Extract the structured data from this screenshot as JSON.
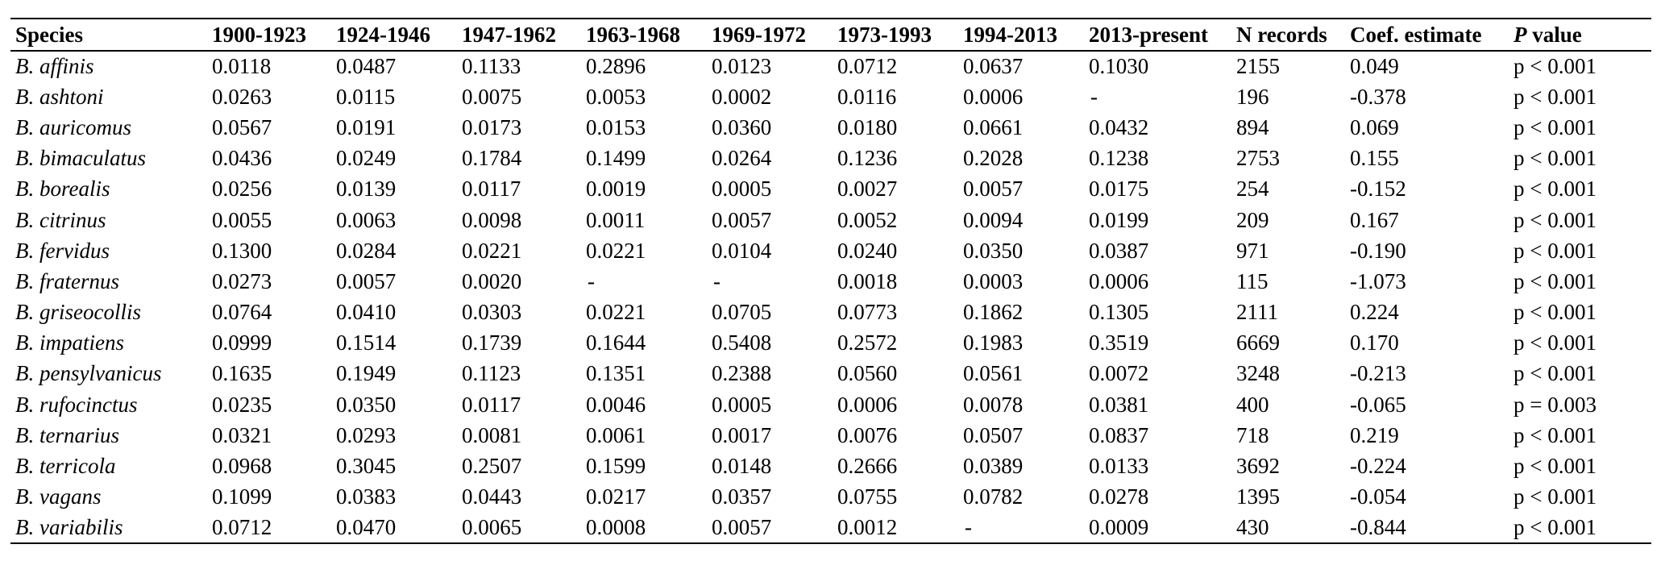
{
  "table": {
    "headers": {
      "species": "Species",
      "p1": "1900-1923",
      "p2": "1924-1946",
      "p3": "1947-1962",
      "p4": "1963-1968",
      "p5": "1969-1972",
      "p6": "1973-1993",
      "p7": "1994-2013",
      "p8": "2013-present",
      "n_records": "N records",
      "coef": "Coef. estimate",
      "p_value_italic": "P",
      "p_value_rest": " value"
    },
    "rows": [
      {
        "species": "B. affinis",
        "p1": "0.0118",
        "p2": "0.0487",
        "p3": "0.1133",
        "p4": "0.2896",
        "p5": "0.0123",
        "p6": "0.0712",
        "p7": "0.0637",
        "p8": "0.1030",
        "n": "2155",
        "coef": "0.049",
        "p": "p < 0.001"
      },
      {
        "species": "B. ashtoni",
        "p1": "0.0263",
        "p2": "0.0115",
        "p3": "0.0075",
        "p4": "0.0053",
        "p5": "0.0002",
        "p6": "0.0116",
        "p7": "0.0006",
        "p8": "-",
        "n": "196",
        "coef": "-0.378",
        "p": "p < 0.001"
      },
      {
        "species": "B. auricomus",
        "p1": "0.0567",
        "p2": "0.0191",
        "p3": "0.0173",
        "p4": "0.0153",
        "p5": "0.0360",
        "p6": "0.0180",
        "p7": "0.0661",
        "p8": "0.0432",
        "n": "894",
        "coef": "0.069",
        "p": "p < 0.001"
      },
      {
        "species": "B. bimaculatus",
        "p1": "0.0436",
        "p2": "0.0249",
        "p3": "0.1784",
        "p4": "0.1499",
        "p5": "0.0264",
        "p6": "0.1236",
        "p7": "0.2028",
        "p8": "0.1238",
        "n": "2753",
        "coef": "0.155",
        "p": "p < 0.001"
      },
      {
        "species": "B. borealis",
        "p1": "0.0256",
        "p2": "0.0139",
        "p3": "0.0117",
        "p4": "0.0019",
        "p5": "0.0005",
        "p6": "0.0027",
        "p7": "0.0057",
        "p8": "0.0175",
        "n": "254",
        "coef": "-0.152",
        "p": "p < 0.001"
      },
      {
        "species": "B. citrinus",
        "p1": "0.0055",
        "p2": "0.0063",
        "p3": "0.0098",
        "p4": "0.0011",
        "p5": "0.0057",
        "p6": "0.0052",
        "p7": "0.0094",
        "p8": "0.0199",
        "n": "209",
        "coef": "0.167",
        "p": "p < 0.001"
      },
      {
        "species": "B. fervidus",
        "p1": "0.1300",
        "p2": "0.0284",
        "p3": "0.0221",
        "p4": "0.0221",
        "p5": "0.0104",
        "p6": "0.0240",
        "p7": "0.0350",
        "p8": "0.0387",
        "n": "971",
        "coef": "-0.190",
        "p": "p < 0.001"
      },
      {
        "species": "B. fraternus",
        "p1": "0.0273",
        "p2": "0.0057",
        "p3": "0.0020",
        "p4": "-",
        "p5": "-",
        "p6": "0.0018",
        "p7": "0.0003",
        "p8": "0.0006",
        "n": "115",
        "coef": "-1.073",
        "p": "p < 0.001"
      },
      {
        "species": "B. griseocollis",
        "p1": "0.0764",
        "p2": "0.0410",
        "p3": "0.0303",
        "p4": "0.0221",
        "p5": "0.0705",
        "p6": "0.0773",
        "p7": "0.1862",
        "p8": "0.1305",
        "n": "2111",
        "coef": "0.224",
        "p": "p < 0.001"
      },
      {
        "species": "B. impatiens",
        "p1": "0.0999",
        "p2": "0.1514",
        "p3": "0.1739",
        "p4": "0.1644",
        "p5": "0.5408",
        "p6": "0.2572",
        "p7": "0.1983",
        "p8": "0.3519",
        "n": "6669",
        "coef": "0.170",
        "p": "p < 0.001"
      },
      {
        "species": "B. pensylvanicus",
        "p1": "0.1635",
        "p2": "0.1949",
        "p3": "0.1123",
        "p4": "0.1351",
        "p5": "0.2388",
        "p6": "0.0560",
        "p7": "0.0561",
        "p8": "0.0072",
        "n": "3248",
        "coef": "-0.213",
        "p": "p < 0.001"
      },
      {
        "species": "B. rufocinctus",
        "p1": "0.0235",
        "p2": "0.0350",
        "p3": "0.0117",
        "p4": "0.0046",
        "p5": "0.0005",
        "p6": "0.0006",
        "p7": "0.0078",
        "p8": "0.0381",
        "n": "400",
        "coef": "-0.065",
        "p": "p = 0.003"
      },
      {
        "species": "B. ternarius",
        "p1": "0.0321",
        "p2": "0.0293",
        "p3": "0.0081",
        "p4": "0.0061",
        "p5": "0.0017",
        "p6": "0.0076",
        "p7": "0.0507",
        "p8": "0.0837",
        "n": "718",
        "coef": "0.219",
        "p": "p < 0.001"
      },
      {
        "species": "B. terricola",
        "p1": "0.0968",
        "p2": "0.3045",
        "p3": "0.2507",
        "p4": "0.1599",
        "p5": "0.0148",
        "p6": "0.2666",
        "p7": "0.0389",
        "p8": "0.0133",
        "n": "3692",
        "coef": "-0.224",
        "p": "p < 0.001"
      },
      {
        "species": "B. vagans",
        "p1": "0.1099",
        "p2": "0.0383",
        "p3": "0.0443",
        "p4": "0.0217",
        "p5": "0.0357",
        "p6": "0.0755",
        "p7": "0.0782",
        "p8": "0.0278",
        "n": "1395",
        "coef": "-0.054",
        "p": "p < 0.001"
      },
      {
        "species": "B. variabilis",
        "p1": "0.0712",
        "p2": "0.0470",
        "p3": "0.0065",
        "p4": "0.0008",
        "p5": "0.0057",
        "p6": "0.0012",
        "p7": "-",
        "p8": "0.0009",
        "n": "430",
        "coef": "-0.844",
        "p": "p < 0.001"
      }
    ]
  }
}
